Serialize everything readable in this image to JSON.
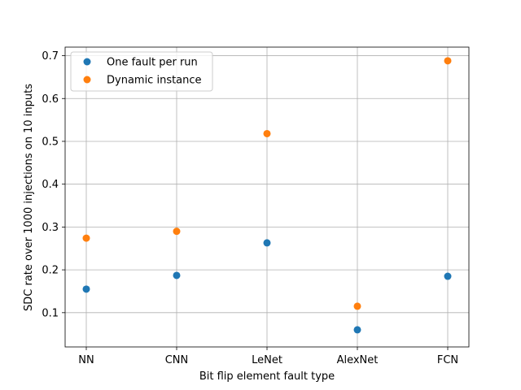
{
  "chart_data": {
    "type": "scatter",
    "title": "",
    "xlabel": "Bit flip element fault type",
    "ylabel": "SDC rate over 1000 injections on 10 inputs",
    "categories": [
      "NN",
      "CNN",
      "LeNet",
      "AlexNet",
      "FCN"
    ],
    "yticks": [
      "0.1",
      "0.2",
      "0.3",
      "0.4",
      "0.5",
      "0.6",
      "0.7"
    ],
    "ylim": [
      0.02,
      0.72
    ],
    "grid": true,
    "legend_position": "top-left",
    "series": [
      {
        "name": "One fault per run",
        "color": "#1f77b4",
        "values": [
          0.155,
          0.187,
          0.263,
          0.06,
          0.185
        ]
      },
      {
        "name": "Dynamic instance",
        "color": "#ff7f0e",
        "values": [
          0.274,
          0.29,
          0.518,
          0.115,
          0.688
        ]
      }
    ]
  }
}
